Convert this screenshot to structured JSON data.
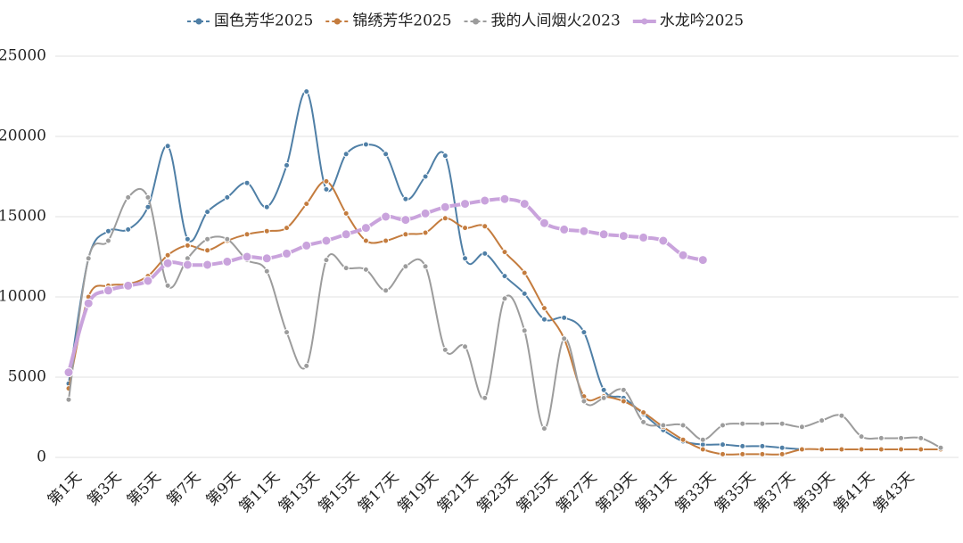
{
  "chart_data": {
    "type": "line",
    "categories": [
      "第1天",
      null,
      "第3天",
      null,
      "第5天",
      null,
      "第7天",
      null,
      "第9天",
      null,
      "第11天",
      null,
      "第13天",
      null,
      "第15天",
      null,
      "第17天",
      null,
      "第19天",
      null,
      "第21天",
      null,
      "第23天",
      null,
      "第25天",
      null,
      "第27天",
      null,
      "第29天",
      null,
      "第31天",
      null,
      "第33天",
      null,
      "第35天",
      null,
      "第37天",
      null,
      "第39天",
      null,
      "第41天",
      null,
      "第43天",
      null,
      null
    ],
    "series": [
      {
        "name": "国色芳华2025",
        "color": "#4f7fa6",
        "values": [
          4600,
          12400,
          14100,
          14200,
          15600,
          19400,
          13600,
          15300,
          16200,
          17100,
          15600,
          18200,
          22800,
          16700,
          18900,
          19500,
          18900,
          16100,
          17500,
          18800,
          12400,
          12700,
          11300,
          10200,
          8600,
          8700,
          7800,
          4200,
          3700,
          2700,
          1700,
          1000,
          800,
          800,
          700,
          700,
          600,
          500,
          null,
          null,
          null,
          null,
          null,
          null,
          null
        ]
      },
      {
        "name": "锦绣芳华2025",
        "color": "#c47c3e",
        "values": [
          4300,
          10000,
          10700,
          10800,
          11300,
          12600,
          13200,
          12900,
          13500,
          13900,
          14100,
          14300,
          15800,
          17200,
          15200,
          13500,
          13500,
          13900,
          14000,
          14900,
          14300,
          14400,
          12800,
          11500,
          9300,
          7400,
          3800,
          3800,
          3500,
          2800,
          1900,
          1100,
          500,
          200,
          200,
          200,
          200,
          500,
          500,
          500,
          500,
          500,
          500,
          500,
          500
        ]
      },
      {
        "name": "我的人间烟火2023",
        "color": "#9c9c9c",
        "values": [
          3600,
          12400,
          13500,
          16200,
          16200,
          10700,
          12400,
          13600,
          13600,
          12300,
          11600,
          7800,
          5700,
          12300,
          11800,
          11700,
          10400,
          11900,
          11900,
          6700,
          6900,
          3700,
          9900,
          7900,
          1800,
          7400,
          3500,
          3700,
          4200,
          2200,
          2000,
          2000,
          1100,
          2000,
          2100,
          2100,
          2100,
          1900,
          2300,
          2600,
          1300,
          1200,
          1200,
          1200,
          600
        ]
      },
      {
        "name": "水龙吟2025",
        "color": "#c9a3dc",
        "values": [
          5300,
          9600,
          10400,
          10700,
          11000,
          12100,
          12000,
          12000,
          12200,
          12500,
          12400,
          12700,
          13200,
          13500,
          13900,
          14300,
          15000,
          14800,
          15200,
          15600,
          15800,
          16000,
          16100,
          15800,
          14600,
          14200,
          14100,
          13900,
          13800,
          13700,
          13500,
          12600,
          12300,
          null,
          null,
          null,
          null,
          null,
          null,
          null,
          null,
          null,
          null,
          null,
          null
        ]
      }
    ],
    "ylim": [
      0,
      25000
    ],
    "yticks": [
      0,
      5000,
      10000,
      15000,
      20000,
      25000
    ],
    "grid": true
  }
}
